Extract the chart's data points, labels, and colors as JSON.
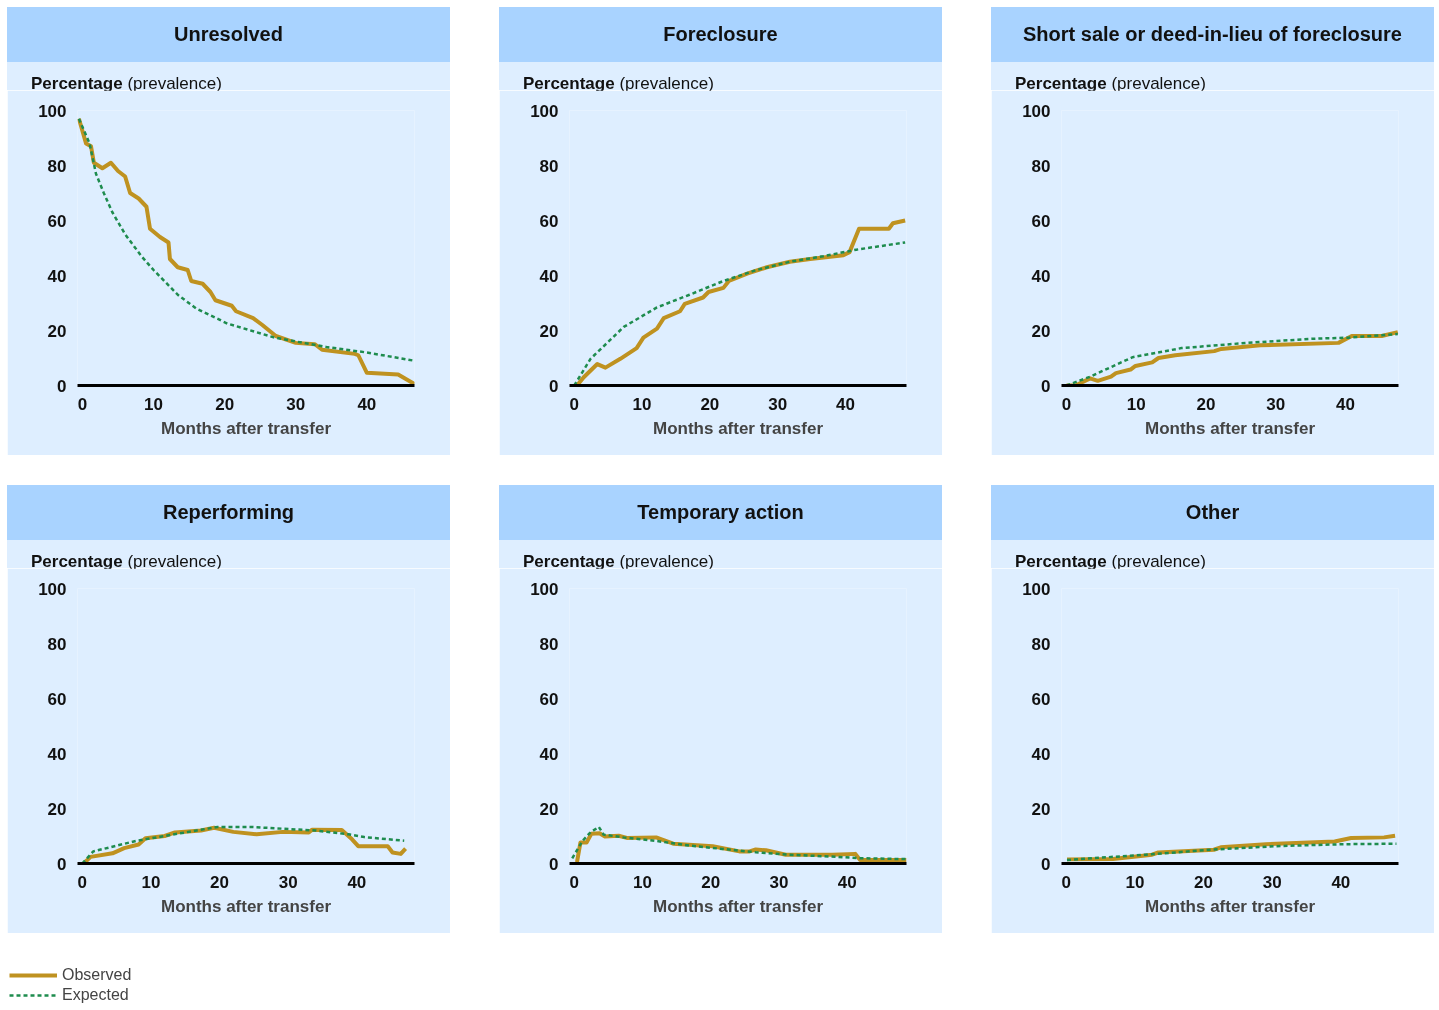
{
  "chart_data": [
    {
      "type": "line",
      "title": "Unresolved",
      "xlabel": "Months after transfer",
      "ylabel": "Percentage (prevalence)",
      "xlim": [
        -0.7,
        46.7
      ],
      "xticks": [
        0,
        10,
        20,
        30,
        40
      ],
      "ylim": [
        0,
        100
      ],
      "yticks": [
        0,
        20,
        40,
        60,
        80,
        100
      ],
      "legend": "bottom left",
      "series": [
        {
          "name": "Observed",
          "color": "#bf9220",
          "line_style": "solid",
          "x": [
            -0.5,
            0.5,
            1.2,
            1.6,
            2.8,
            4,
            5,
            6,
            6.7,
            7.9,
            9,
            9.5,
            10.9,
            12.1,
            12.3,
            13.4,
            14.8,
            15.3,
            16.9,
            18,
            18.7,
            21,
            21.6,
            24,
            25.3,
            27.2,
            30,
            32.7,
            33.7,
            38.3,
            38.8,
            40,
            44.4,
            46.7
          ],
          "values": [
            97,
            88,
            87,
            81,
            79,
            81,
            78,
            76,
            70,
            68,
            65,
            57,
            54,
            52,
            46,
            43,
            42,
            38,
            37,
            34,
            31,
            29,
            27,
            24.5,
            22,
            18,
            15.5,
            15,
            13,
            11.5,
            11,
            4.6,
            4,
            0.5
          ]
        },
        {
          "name": "Expected",
          "color": "#1e8c4e",
          "line_style": "dashed",
          "x": [
            -0.5,
            1,
            1.9,
            3,
            4.2,
            6,
            8.3,
            10,
            13.4,
            16,
            20.4,
            26.9,
            30,
            34.3,
            40,
            46.7
          ],
          "values": [
            97,
            88,
            77,
            70,
            63,
            55,
            47,
            42,
            33,
            28,
            22.5,
            17.5,
            16,
            14,
            12,
            9
          ]
        }
      ]
    },
    {
      "type": "line",
      "title": "Foreclosure",
      "xlabel": "Months after transfer",
      "ylabel": "Percentage (prevalence)",
      "xlim": [
        -0.7,
        49
      ],
      "xticks": [
        0,
        10,
        20,
        30,
        40
      ],
      "ylim": [
        0,
        100
      ],
      "yticks": [
        0,
        20,
        40,
        60,
        80,
        100
      ],
      "series": [
        {
          "color": "#bf9220",
          "line_style": "solid",
          "x": [
            0.4,
            1.4,
            3.4,
            4.6,
            6.8,
            9.2,
            10.2,
            12.2,
            13.2,
            15.6,
            16.3,
            19,
            19.8,
            22,
            22.8,
            25.5,
            28.4,
            31.8,
            34.8,
            39.7,
            40.6,
            42,
            46.4,
            47,
            48.8
          ],
          "values": [
            0,
            3,
            7.8,
            6.5,
            9.7,
            13.6,
            17.4,
            20.7,
            24.5,
            27,
            29.7,
            32,
            34,
            35.5,
            38,
            40.7,
            43,
            45,
            46,
            47.4,
            48.5,
            57,
            57,
            59,
            60
          ]
        },
        {
          "color": "#1e8c4e",
          "line_style": "dashed",
          "x": [
            0,
            2.4,
            7.3,
            12.2,
            17,
            22,
            26.9,
            31.8,
            36.7,
            41.6,
            48.8
          ],
          "values": [
            0,
            9.7,
            21.3,
            28.4,
            33,
            38,
            42,
            45,
            47,
            49.4,
            52
          ]
        }
      ]
    },
    {
      "type": "line",
      "title": "Short sale or deed-in-lieu of foreclosure",
      "xlabel": "Months after transfer",
      "ylabel": "Percentage (prevalence)",
      "xlim": [
        -0.7,
        47.6
      ],
      "xticks": [
        0,
        10,
        20,
        30,
        40
      ],
      "ylim": [
        0,
        100
      ],
      "yticks": [
        0,
        20,
        40,
        60,
        80,
        100
      ],
      "series": [
        {
          "color": "#bf9220",
          "line_style": "solid",
          "x": [
            0,
            1.3,
            3.4,
            4.5,
            6.4,
            7.1,
            9.2,
            9.9,
            12.3,
            13.2,
            15.6,
            21.2,
            22.2,
            27.8,
            39,
            40.9,
            45.2,
            47.5
          ],
          "values": [
            0,
            0,
            2.6,
            1.7,
            3.2,
            4.5,
            5.8,
            7.1,
            8.4,
            10,
            11,
            12.5,
            13.3,
            14.6,
            15.5,
            18,
            18,
            19.4
          ]
        },
        {
          "color": "#1e8c4e",
          "line_style": "dashed",
          "x": [
            0,
            3.4,
            9.5,
            16.5,
            25.9,
            35.3,
            40.4,
            47.5
          ],
          "values": [
            0,
            3.2,
            10.3,
            13.6,
            15.5,
            17,
            17.4,
            18.7
          ]
        }
      ]
    },
    {
      "type": "line",
      "title": "Reperforming",
      "xlabel": "Months after transfer",
      "ylabel": "Percentage (prevalence)",
      "xlim": [
        -0.7,
        48.4
      ],
      "xticks": [
        0,
        10,
        20,
        30,
        40
      ],
      "ylim": [
        0,
        100
      ],
      "yticks": [
        0,
        20,
        40,
        60,
        80,
        100
      ],
      "series": [
        {
          "color": "#bf9220",
          "line_style": "solid",
          "x": [
            0.2,
            1.2,
            4.4,
            6.1,
            8.2,
            9.2,
            12,
            13.5,
            17.3,
            19.2,
            22,
            25.4,
            29.2,
            33,
            33.5,
            37.8,
            39.3,
            40.2,
            44.5,
            45.2,
            46.4,
            47.1
          ],
          "values": [
            0,
            2.4,
            3.7,
            5.6,
            6.9,
            9.2,
            10,
            11.3,
            12,
            13,
            11.5,
            10.6,
            11.5,
            11.3,
            12.3,
            12.2,
            8.8,
            6.3,
            6.3,
            4,
            3.5,
            5.4
          ]
        },
        {
          "color": "#1e8c4e",
          "line_style": "dashed",
          "x": [
            0,
            1.6,
            7.8,
            15,
            19.7,
            24.5,
            34,
            38.8,
            41.1,
            46.9
          ],
          "values": [
            0,
            4.4,
            8.2,
            11.3,
            13.3,
            13.3,
            12,
            10.6,
            9.6,
            8.3
          ]
        }
      ]
    },
    {
      "type": "line",
      "title": "Temporary action",
      "xlabel": "Months after transfer",
      "ylabel": "Percentage (prevalence)",
      "xlim": [
        -0.7,
        48.7
      ],
      "xticks": [
        0,
        10,
        20,
        30,
        40
      ],
      "ylim": [
        0,
        100
      ],
      "yticks": [
        0,
        20,
        40,
        60,
        80,
        100
      ],
      "series": [
        {
          "color": "#bf9220",
          "line_style": "solid",
          "x": [
            0.4,
            0.9,
            1.8,
            2.5,
            3.7,
            4.5,
            6.5,
            7.7,
            12,
            14.5,
            20.3,
            24.2,
            25.7,
            26.6,
            28.1,
            31,
            37.8,
            41.2,
            41.9,
            48.7
          ],
          "values": [
            0.5,
            7.6,
            7.6,
            10.8,
            11,
            9.8,
            10.1,
            9.3,
            9.5,
            7.2,
            6.3,
            4.4,
            4.4,
            5.1,
            4.8,
            3.2,
            3.2,
            3.5,
            1.3,
            1.3
          ]
        },
        {
          "color": "#1e8c4e",
          "line_style": "dashed",
          "x": [
            -0.3,
            1.2,
            2.4,
            3.6,
            4.3,
            7.2,
            12,
            16.9,
            21.7,
            26.6,
            31.5,
            38.7,
            42.1,
            48.7
          ],
          "values": [
            1.9,
            8.2,
            11.4,
            13.3,
            10.5,
            9.5,
            8.2,
            6.5,
            5.3,
            4.1,
            3.2,
            2.4,
            1.9,
            1.6
          ]
        }
      ]
    },
    {
      "type": "line",
      "title": "Other",
      "xlabel": "Months after transfer",
      "ylabel": "Percentage (prevalence)",
      "xlim": [
        -0.7,
        48.4
      ],
      "xticks": [
        0,
        10,
        20,
        30,
        40
      ],
      "ylim": [
        0,
        100
      ],
      "yticks": [
        0,
        20,
        40,
        60,
        80,
        100
      ],
      "series": [
        {
          "color": "#bf9220",
          "line_style": "solid",
          "x": [
            0.1,
            6.8,
            12.5,
            13.4,
            21.5,
            22.5,
            29.1,
            39.1,
            41.5,
            46.3,
            47.9
          ],
          "values": [
            1.5,
            1.6,
            3.2,
            4,
            5,
            5.9,
            7,
            8,
            9.3,
            9.5,
            10.1
          ]
        },
        {
          "color": "#1e8c4e",
          "line_style": "dashed",
          "x": [
            0.1,
            11.5,
            21,
            30.5,
            40,
            48.1
          ],
          "values": [
            1.3,
            3.2,
            5,
            6.3,
            7,
            7.2
          ]
        }
      ]
    }
  ]
}
